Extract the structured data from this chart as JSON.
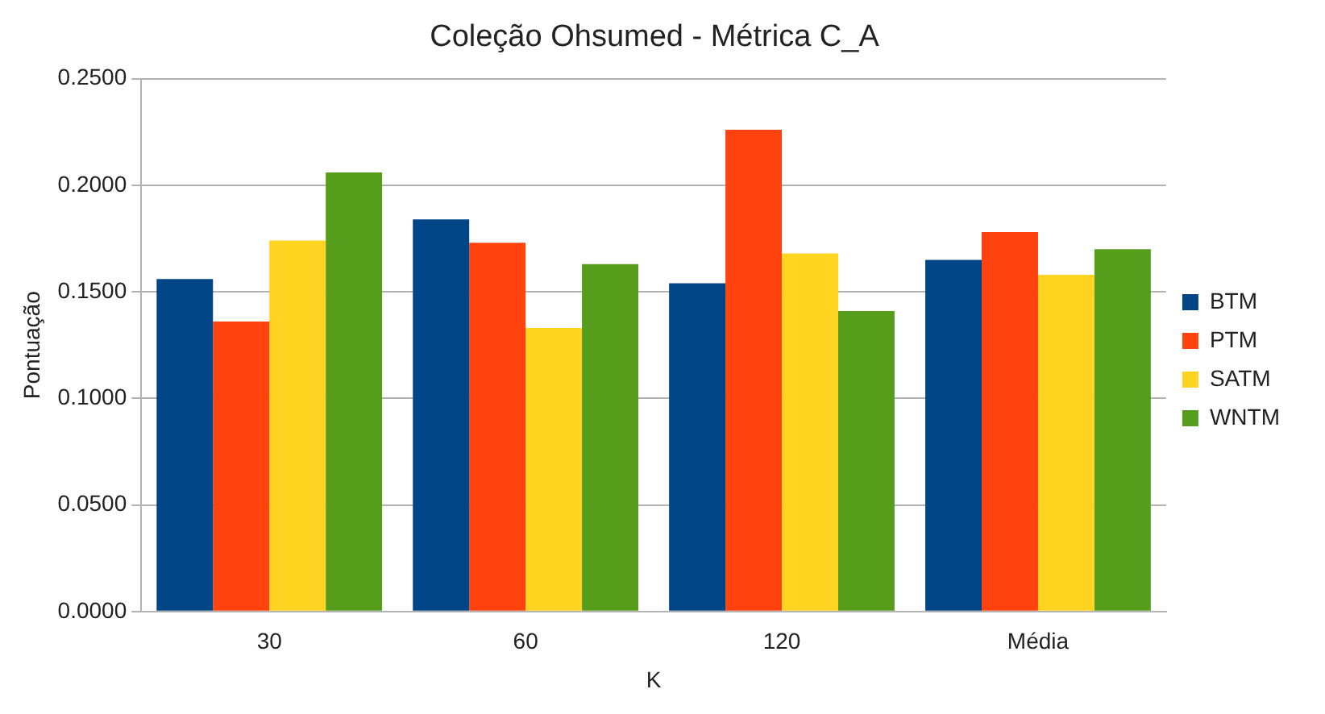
{
  "chart_data": {
    "type": "bar",
    "title": "Coleção Ohsumed - Métrica C_A",
    "xlabel": "K",
    "ylabel": "Pontuação",
    "categories": [
      "30",
      "60",
      "120",
      "Média"
    ],
    "series": [
      {
        "name": "BTM",
        "color": "#004586",
        "values": [
          0.156,
          0.184,
          0.154,
          0.165
        ]
      },
      {
        "name": "PTM",
        "color": "#ff420e",
        "values": [
          0.136,
          0.173,
          0.226,
          0.178
        ]
      },
      {
        "name": "SATM",
        "color": "#ffd320",
        "values": [
          0.174,
          0.133,
          0.168,
          0.158
        ]
      },
      {
        "name": "WNTM",
        "color": "#579d1c",
        "values": [
          0.206,
          0.163,
          0.141,
          0.17
        ]
      }
    ],
    "ylim": [
      0,
      0.25
    ],
    "yticks": [
      {
        "value": 0,
        "label": "0.0000"
      },
      {
        "value": 0.05,
        "label": "0.0500"
      },
      {
        "value": 0.1,
        "label": "0.1000"
      },
      {
        "value": 0.15,
        "label": "0.1500"
      },
      {
        "value": 0.2,
        "label": "0.2000"
      },
      {
        "value": 0.25,
        "label": "0.2500"
      }
    ],
    "grid": "y",
    "legend": "right"
  }
}
